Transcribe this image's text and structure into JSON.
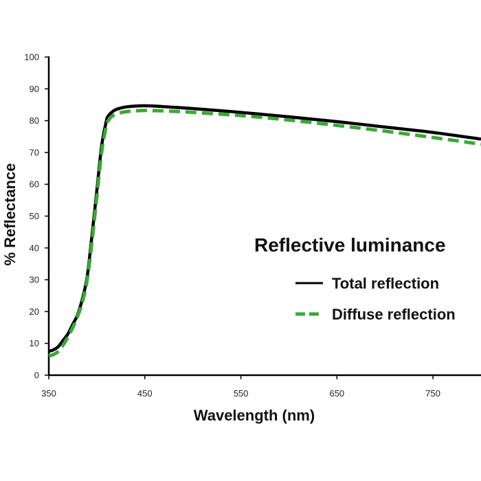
{
  "chart_data": {
    "type": "line",
    "xlabel": "Wavelength (nm)",
    "ylabel": "% Reflectance",
    "xlim": [
      350,
      800
    ],
    "ylim": [
      0,
      100
    ],
    "x_ticks": [
      350,
      450,
      550,
      650,
      750
    ],
    "y_ticks": [
      0,
      10,
      20,
      30,
      40,
      50,
      60,
      70,
      80,
      90,
      100
    ],
    "grid": false,
    "legend": {
      "title": "Reflective luminance",
      "placement": "right-middle"
    },
    "series": [
      {
        "name": "Total reflection",
        "color": "#000000",
        "style": "solid",
        "x": [
          350,
          355,
          360,
          365,
          370,
          375,
          380,
          385,
          390,
          395,
          400,
          405,
          410,
          412,
          415,
          420,
          430,
          450,
          475,
          500,
          550,
          600,
          650,
          700,
          750,
          800
        ],
        "y": [
          7.5,
          8,
          9,
          11,
          13,
          16,
          19,
          24,
          31,
          44,
          58,
          72,
          80,
          81.5,
          82.5,
          83.5,
          84.3,
          84.7,
          84.3,
          83.8,
          82.6,
          81.2,
          79.7,
          78,
          76.3,
          74.2
        ]
      },
      {
        "name": "Diffuse reflection",
        "color": "#3aa935",
        "style": "dashed",
        "x": [
          350,
          355,
          360,
          365,
          370,
          375,
          380,
          385,
          390,
          395,
          400,
          405,
          410,
          412,
          415,
          420,
          430,
          450,
          475,
          500,
          550,
          600,
          650,
          700,
          750,
          800
        ],
        "y": [
          6,
          6.5,
          7.5,
          9.5,
          12,
          15,
          18.5,
          23,
          30,
          42,
          56,
          70,
          78.5,
          80,
          81.2,
          82,
          82.8,
          83.2,
          83,
          82.6,
          81.6,
          80.2,
          78.5,
          76.7,
          74.7,
          72.6
        ]
      }
    ]
  }
}
